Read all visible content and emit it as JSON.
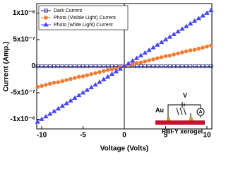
{
  "chart_data": {
    "type": "line",
    "x_label": "Voltage (Volts)",
    "y_label": "Current (Amp.)",
    "x": [
      -10.5,
      -10,
      -9.5,
      -9,
      -8.5,
      -8,
      -7.5,
      -7,
      -6.5,
      -6,
      -5.5,
      -5,
      -4.5,
      -4,
      -3.5,
      -3,
      -2.5,
      -2,
      -1.5,
      -1,
      -0.5,
      0,
      0.5,
      1,
      1.5,
      2,
      2.5,
      3,
      3.5,
      4,
      4.5,
      5,
      5.5,
      6,
      6.5,
      7,
      7.5,
      8,
      8.5,
      9,
      9.5,
      10,
      10.5
    ],
    "series": [
      {
        "name": "Dark Current",
        "color": "#1c1c7a",
        "marker": "square",
        "values": [
          0,
          0,
          0,
          0,
          0,
          0,
          0,
          0,
          0,
          0,
          0,
          0,
          0,
          0,
          0,
          0,
          0,
          0,
          0,
          0,
          0,
          0,
          0,
          0,
          0,
          0,
          0,
          0,
          0,
          0,
          0,
          0,
          0,
          0,
          0,
          0,
          0,
          0,
          0,
          0,
          0,
          0,
          0
        ]
      },
      {
        "name": "Photo (Visible Light) Current",
        "color": "#f07c32",
        "marker": "circle",
        "values": [
          -3.9e-07,
          -3.7e-07,
          -3.5e-07,
          -3.3e-07,
          -3.1e-07,
          -3e-07,
          -2.8e-07,
          -2.6e-07,
          -2.4e-07,
          -2.2e-07,
          -2e-07,
          -1.9e-07,
          -1.7e-07,
          -1.5e-07,
          -1.3e-07,
          -1.1e-07,
          -9e-08,
          -7e-08,
          -6e-08,
          -4e-08,
          -2e-08,
          0,
          2e-08,
          4e-08,
          6e-08,
          7e-08,
          9e-08,
          1.1e-07,
          1.3e-07,
          1.5e-07,
          1.7e-07,
          1.9e-07,
          2e-07,
          2.2e-07,
          2.4e-07,
          2.6e-07,
          2.8e-07,
          3e-07,
          3.1e-07,
          3.3e-07,
          3.5e-07,
          3.7e-07,
          3.9e-07
        ]
      },
      {
        "name": "Photo (white Light) Current",
        "color": "#4646f5",
        "marker": "triangle",
        "values": [
          -1.05e-06,
          -1e-06,
          -9.5e-07,
          -9e-07,
          -8.5e-07,
          -8e-07,
          -7.5e-07,
          -7e-07,
          -6.5e-07,
          -6e-07,
          -5.5e-07,
          -5e-07,
          -4.5e-07,
          -4e-07,
          -3.5e-07,
          -3e-07,
          -2.5e-07,
          -2e-07,
          -1.5e-07,
          -1e-07,
          -5e-08,
          0,
          5e-08,
          1e-07,
          1.5e-07,
          2e-07,
          2.5e-07,
          3e-07,
          3.5e-07,
          4e-07,
          4.5e-07,
          5e-07,
          5.5e-07,
          6e-07,
          6.5e-07,
          7e-07,
          7.5e-07,
          8e-07,
          8.5e-07,
          9e-07,
          9.5e-07,
          1e-06,
          1.05e-06
        ]
      }
    ],
    "xlim": [
      -10.6,
      10.6
    ],
    "xticks": [
      -10,
      -5,
      0,
      5,
      10
    ],
    "ylim": [
      -1.18e-06,
      1.18e-06
    ],
    "yticks": [
      {
        "value": -1e-06,
        "label": "-1x10⁻⁶"
      },
      {
        "value": -5e-07,
        "label": "-5x10⁻⁷"
      },
      0,
      {
        "value": 5e-07,
        "label": "5x10⁻⁷"
      },
      {
        "value": 1e-06,
        "label": "1x10⁻⁶"
      }
    ],
    "legend": "upper left",
    "grid": false,
    "inset_labels": {
      "voltage": "V",
      "electrode": "Au",
      "ammeter": "A",
      "material": "PBI-Y xerogel"
    }
  }
}
